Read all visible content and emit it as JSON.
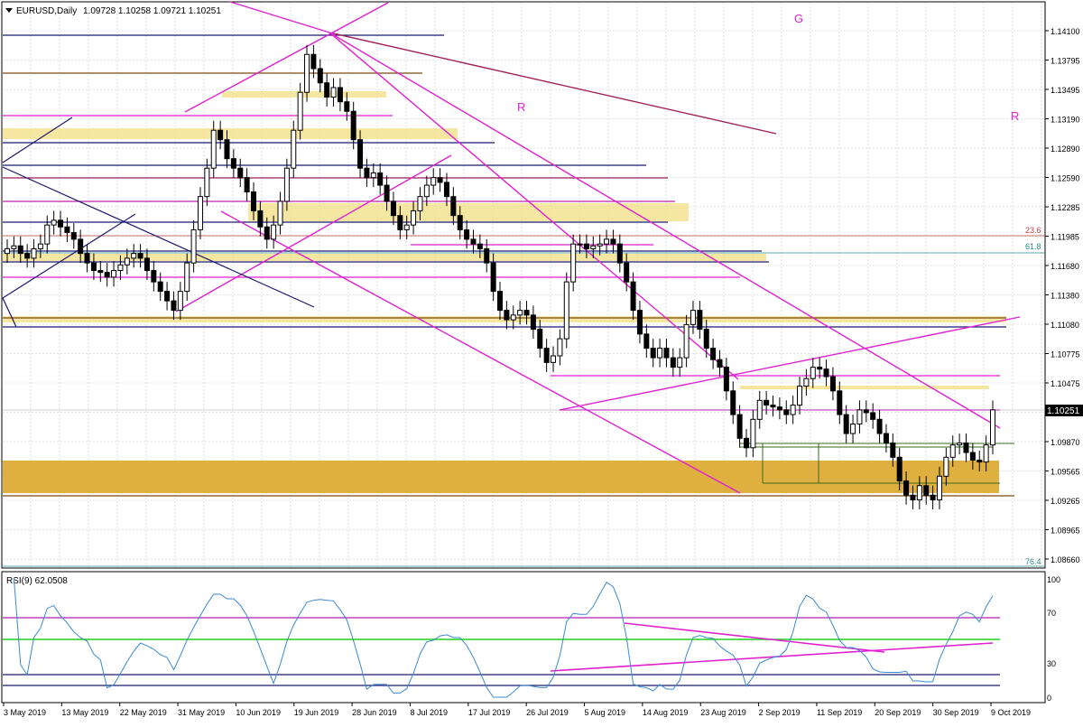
{
  "chart_data": {
    "type": "candlestick",
    "header": {
      "symbol": "EURUSD,Daily",
      "ohlc": "1.09728 1.10258 1.09721 1.10251"
    },
    "price_axis": {
      "ticks": [
        "1.14100",
        "1.13795",
        "1.13495",
        "1.13190",
        "1.12890",
        "1.12590",
        "1.12285",
        "1.11985",
        "1.11680",
        "1.11380",
        "1.11080",
        "1.10775",
        "1.10475",
        "1.10170",
        "1.09870",
        "1.09565",
        "1.09265",
        "1.08965",
        "1.08660"
      ],
      "ylim": [
        1.086,
        1.1425
      ],
      "current_price": "1.10251"
    },
    "date_axis": {
      "labels": [
        "3 May 2019",
        "13 May 2019",
        "22 May 2019",
        "31 May 2019",
        "10 Jun 2019",
        "19 Jun 2019",
        "28 Jun 2019",
        "8 Jul 2019",
        "17 Jul 2019",
        "26 Jul 2019",
        "5 Aug 2019",
        "14 Aug 2019",
        "23 Aug 2019",
        "2 Sep 2019",
        "11 Sep 2019",
        "20 Sep 2019",
        "30 Sep 2019",
        "9 Oct 2019"
      ]
    },
    "fib_labels": {
      "a": "23.6",
      "b": "61.8",
      "c": "76.4"
    },
    "annotations": {
      "g": "G",
      "r1": "R",
      "r2": "R"
    },
    "closes": [
      1.1195,
      1.1198,
      1.119,
      1.1185,
      1.1195,
      1.12,
      1.122,
      1.1225,
      1.1218,
      1.1212,
      1.1205,
      1.119,
      1.118,
      1.1172,
      1.117,
      1.1165,
      1.1172,
      1.1178,
      1.1185,
      1.119,
      1.1185,
      1.1172,
      1.116,
      1.115,
      1.114,
      1.113,
      1.115,
      1.118,
      1.1215,
      1.125,
      1.128,
      1.132,
      1.131,
      1.129,
      1.128,
      1.127,
      1.1255,
      1.1235,
      1.1218,
      1.1205,
      1.122,
      1.1245,
      1.128,
      1.132,
      1.136,
      1.14,
      1.1385,
      1.137,
      1.1355,
      1.1365,
      1.135,
      1.134,
      1.131,
      1.128,
      1.127,
      1.1275,
      1.1262,
      1.1245,
      1.123,
      1.1215,
      1.122,
      1.1235,
      1.125,
      1.1262,
      1.127,
      1.1265,
      1.125,
      1.123,
      1.1215,
      1.1205,
      1.12,
      1.1195,
      1.118,
      1.115,
      1.113,
      1.112,
      1.1125,
      1.113,
      1.1125,
      1.111,
      1.109,
      1.1075,
      1.1082,
      1.11,
      1.116,
      1.12,
      1.12,
      1.1195,
      1.1198,
      1.12,
      1.1205,
      1.12,
      1.118,
      1.116,
      1.113,
      1.1105,
      1.109,
      1.108,
      1.109,
      1.108,
      1.107,
      1.108,
      1.1115,
      1.113,
      1.111,
      1.109,
      1.1078,
      1.107,
      1.1045,
      1.102,
      1.0995,
      1.0985,
      1.1015,
      1.1035,
      1.103,
      1.1028,
      1.1025,
      1.102,
      1.103,
      1.105,
      1.1058,
      1.107,
      1.1068,
      1.106,
      1.1045,
      1.102,
      1.1,
      1.101,
      1.1025,
      1.1022,
      1.1015,
      1.1,
      1.099,
      1.0975,
      1.095,
      1.0935,
      1.093,
      1.0945,
      1.0935,
      1.093,
      1.0955,
      1.0975,
      1.0988,
      1.099,
      1.098,
      1.0972,
      1.097,
      1.0988,
      1.1025
    ]
  }
}
